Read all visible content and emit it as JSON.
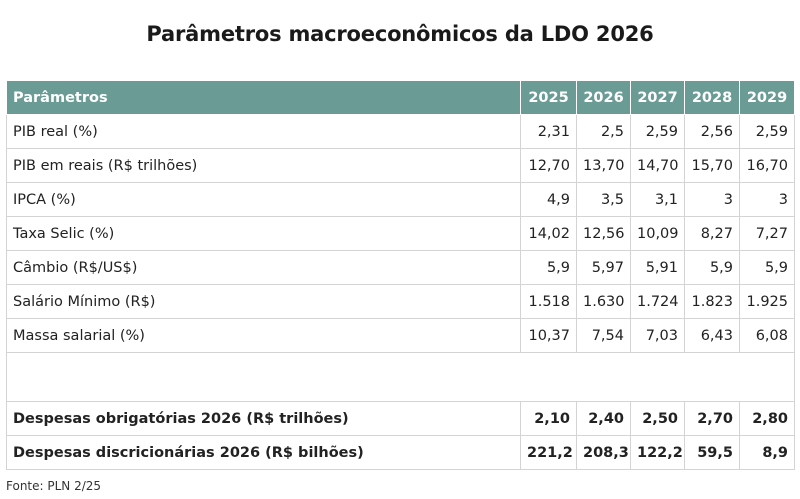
{
  "title": "Parâmetros macroeconômicos da LDO 2026",
  "table": {
    "header": {
      "label": "Parâmetros",
      "years": [
        "2025",
        "2026",
        "2027",
        "2028",
        "2029"
      ]
    },
    "rows": [
      {
        "label": "PIB real (%)",
        "values": [
          "2,31",
          "2,5",
          "2,59",
          "2,56",
          "2,59"
        ]
      },
      {
        "label": "PIB em reais (R$ trilhões)",
        "values": [
          "12,70",
          "13,70",
          "14,70",
          "15,70",
          "16,70"
        ]
      },
      {
        "label": "IPCA (%)",
        "values": [
          "4,9",
          "3,5",
          "3,1",
          "3",
          "3"
        ]
      },
      {
        "label": "Taxa Selic (%)",
        "values": [
          "14,02",
          "12,56",
          "10,09",
          "8,27",
          "7,27"
        ]
      },
      {
        "label": "Câmbio (R$/US$)",
        "values": [
          "5,9",
          "5,97",
          "5,91",
          "5,9",
          "5,9"
        ]
      },
      {
        "label": "Salário Mínimo (R$)",
        "values": [
          "1.518",
          "1.630",
          "1.724",
          "1.823",
          "1.925"
        ]
      },
      {
        "label": "Massa salarial (%)",
        "values": [
          "10,37",
          "7,54",
          "7,03",
          "6,43",
          "6,08"
        ]
      }
    ],
    "summary_rows": [
      {
        "label": "Despesas obrigatórias 2026 (R$ trilhões)",
        "values": [
          "2,10",
          "2,40",
          "2,50",
          "2,70",
          "2,80"
        ]
      },
      {
        "label": "Despesas discricionárias 2026 (R$ bilhões)",
        "values": [
          "221,2",
          "208,3",
          "122,2",
          "59,5",
          "8,9"
        ]
      }
    ]
  },
  "source": "Fonte: PLN 2/25"
}
